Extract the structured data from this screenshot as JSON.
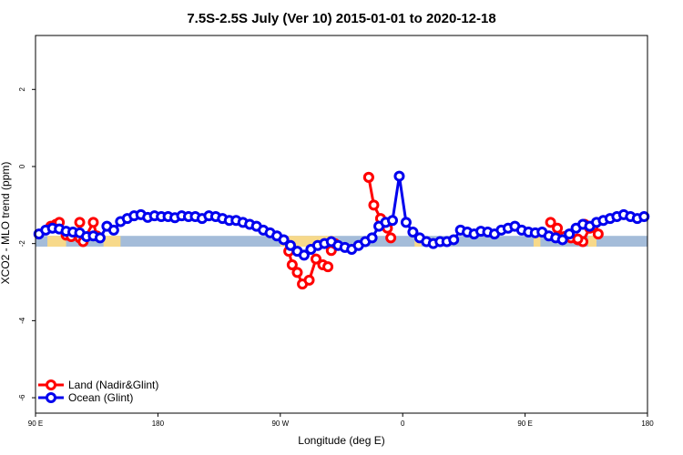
{
  "chart_data": {
    "type": "line",
    "title": "7.5S-2.5S July (Ver 10)   2015-01-01 to 2020-12-18",
    "xlabel": "Longitude (deg E)",
    "ylabel": "XCO2 - MLO trend (ppm)",
    "xlim": [
      90,
      450
    ],
    "ylim": [
      -6.4,
      3.4
    ],
    "x_ticks": [
      {
        "value": 90,
        "label": "90 E"
      },
      {
        "value": 162,
        "label": "180"
      },
      {
        "value": 234,
        "label": "90 W"
      },
      {
        "value": 306,
        "label": "0"
      },
      {
        "value": 378,
        "label": "90 E"
      },
      {
        "value": 450,
        "label": "180"
      }
    ],
    "y_ticks": [
      {
        "value": 2,
        "label": "2"
      },
      {
        "value": 0,
        "label": "0"
      },
      {
        "value": -2,
        "label": "-2"
      },
      {
        "value": -4,
        "label": "-4"
      },
      {
        "value": -6,
        "label": "-6"
      }
    ],
    "legend_position": "bottom-left",
    "colors": {
      "land": "#ff0000",
      "ocean": "#0000ee",
      "band_ocean": "#a4bcd9",
      "band_land": "#f7d98a"
    },
    "background_band": {
      "y_range": [
        -2.08,
        -1.8
      ],
      "land_segments": [
        [
          97,
          108
        ],
        [
          130,
          140
        ],
        [
          234,
          266
        ],
        [
          313,
          317
        ],
        [
          383,
          387
        ],
        [
          415,
          420
        ]
      ]
    },
    "series": [
      {
        "name": "Land (Nadir&Glint)",
        "color": "#ff0000",
        "x": [
          99,
          102,
          104,
          108,
          111,
          116,
          118,
          124,
          126
        ],
        "y": [
          -1.55,
          -1.5,
          -1.45,
          -1.78,
          -1.82,
          -1.85,
          -1.95,
          -1.45,
          -1.8
        ],
        "isolated_points": [
          {
            "x": 116,
            "y": -1.45
          },
          {
            "x": 286,
            "y": -0.28
          },
          {
            "x": 393,
            "y": -1.45
          },
          {
            "x": 397,
            "y": -1.82
          },
          {
            "x": 409,
            "y": -1.88
          },
          {
            "x": 413,
            "y": -1.5
          },
          {
            "x": 421,
            "y": -1.75
          }
        ],
        "segments": [
          {
            "x": [
              239,
              241,
              244,
              247,
              251,
              255,
              259,
              262
            ],
            "y": [
              -2.2,
              -2.55,
              -2.75,
              -3.05,
              -2.95,
              -2.4,
              -2.55,
              -2.6
            ]
          },
          {
            "x": [
              264,
              266
            ],
            "y": [
              -2.18,
              -2.0
            ]
          },
          {
            "x": [
              286,
              289,
              293,
              297,
              299
            ],
            "y": [
              -0.28,
              -1.0,
              -1.35,
              -1.6,
              -1.85
            ]
          },
          {
            "x": [
              397,
              401,
              405,
              409
            ],
            "y": [
              -1.6,
              -1.82,
              -1.85,
              -1.9
            ]
          },
          {
            "x": [
              412,
              416,
              418
            ],
            "y": [
              -1.95,
              -1.6,
              -1.55
            ]
          }
        ]
      },
      {
        "name": "Ocean (Glint)",
        "color": "#0000ee",
        "x": [
          92,
          96,
          100,
          104,
          108,
          112,
          116,
          120,
          124,
          128,
          132,
          136,
          140,
          144,
          148,
          152,
          156,
          160,
          164,
          168,
          172,
          176,
          180,
          184,
          188,
          192,
          196,
          200,
          204,
          208,
          212,
          216,
          220,
          224,
          228,
          232,
          236,
          240,
          244,
          248,
          252,
          256,
          260,
          264,
          268,
          272,
          276,
          280,
          284,
          288,
          292,
          296,
          300,
          304,
          308,
          312,
          316,
          320,
          324,
          328,
          332,
          336,
          340,
          344,
          348,
          352,
          356,
          360,
          364,
          368,
          372,
          376,
          380,
          384,
          388,
          392,
          396,
          400,
          404,
          408,
          412,
          416,
          420,
          424,
          428,
          432,
          436,
          440,
          444,
          448
        ],
        "y": [
          -1.75,
          -1.65,
          -1.6,
          -1.62,
          -1.68,
          -1.7,
          -1.72,
          -1.82,
          -1.8,
          -1.85,
          -1.55,
          -1.65,
          -1.43,
          -1.35,
          -1.28,
          -1.25,
          -1.32,
          -1.28,
          -1.3,
          -1.3,
          -1.33,
          -1.28,
          -1.3,
          -1.3,
          -1.35,
          -1.28,
          -1.3,
          -1.35,
          -1.4,
          -1.4,
          -1.45,
          -1.5,
          -1.55,
          -1.65,
          -1.72,
          -1.8,
          -1.9,
          -2.05,
          -2.2,
          -2.3,
          -2.15,
          -2.05,
          -2.0,
          -1.95,
          -2.05,
          -2.1,
          -2.15,
          -2.05,
          -1.95,
          -1.85,
          -1.55,
          -1.45,
          -1.4,
          -0.25,
          -1.45,
          -1.7,
          -1.85,
          -1.95,
          -2.0,
          -1.95,
          -1.95,
          -1.9,
          -1.65,
          -1.7,
          -1.75,
          -1.68,
          -1.7,
          -1.75,
          -1.65,
          -1.6,
          -1.55,
          -1.65,
          -1.7,
          -1.72,
          -1.7,
          -1.8,
          -1.85,
          -1.9,
          -1.75,
          -1.6,
          -1.5,
          -1.55,
          -1.45,
          -1.4,
          -1.35,
          -1.3,
          -1.25,
          -1.3,
          -1.35,
          -1.3
        ]
      }
    ]
  }
}
